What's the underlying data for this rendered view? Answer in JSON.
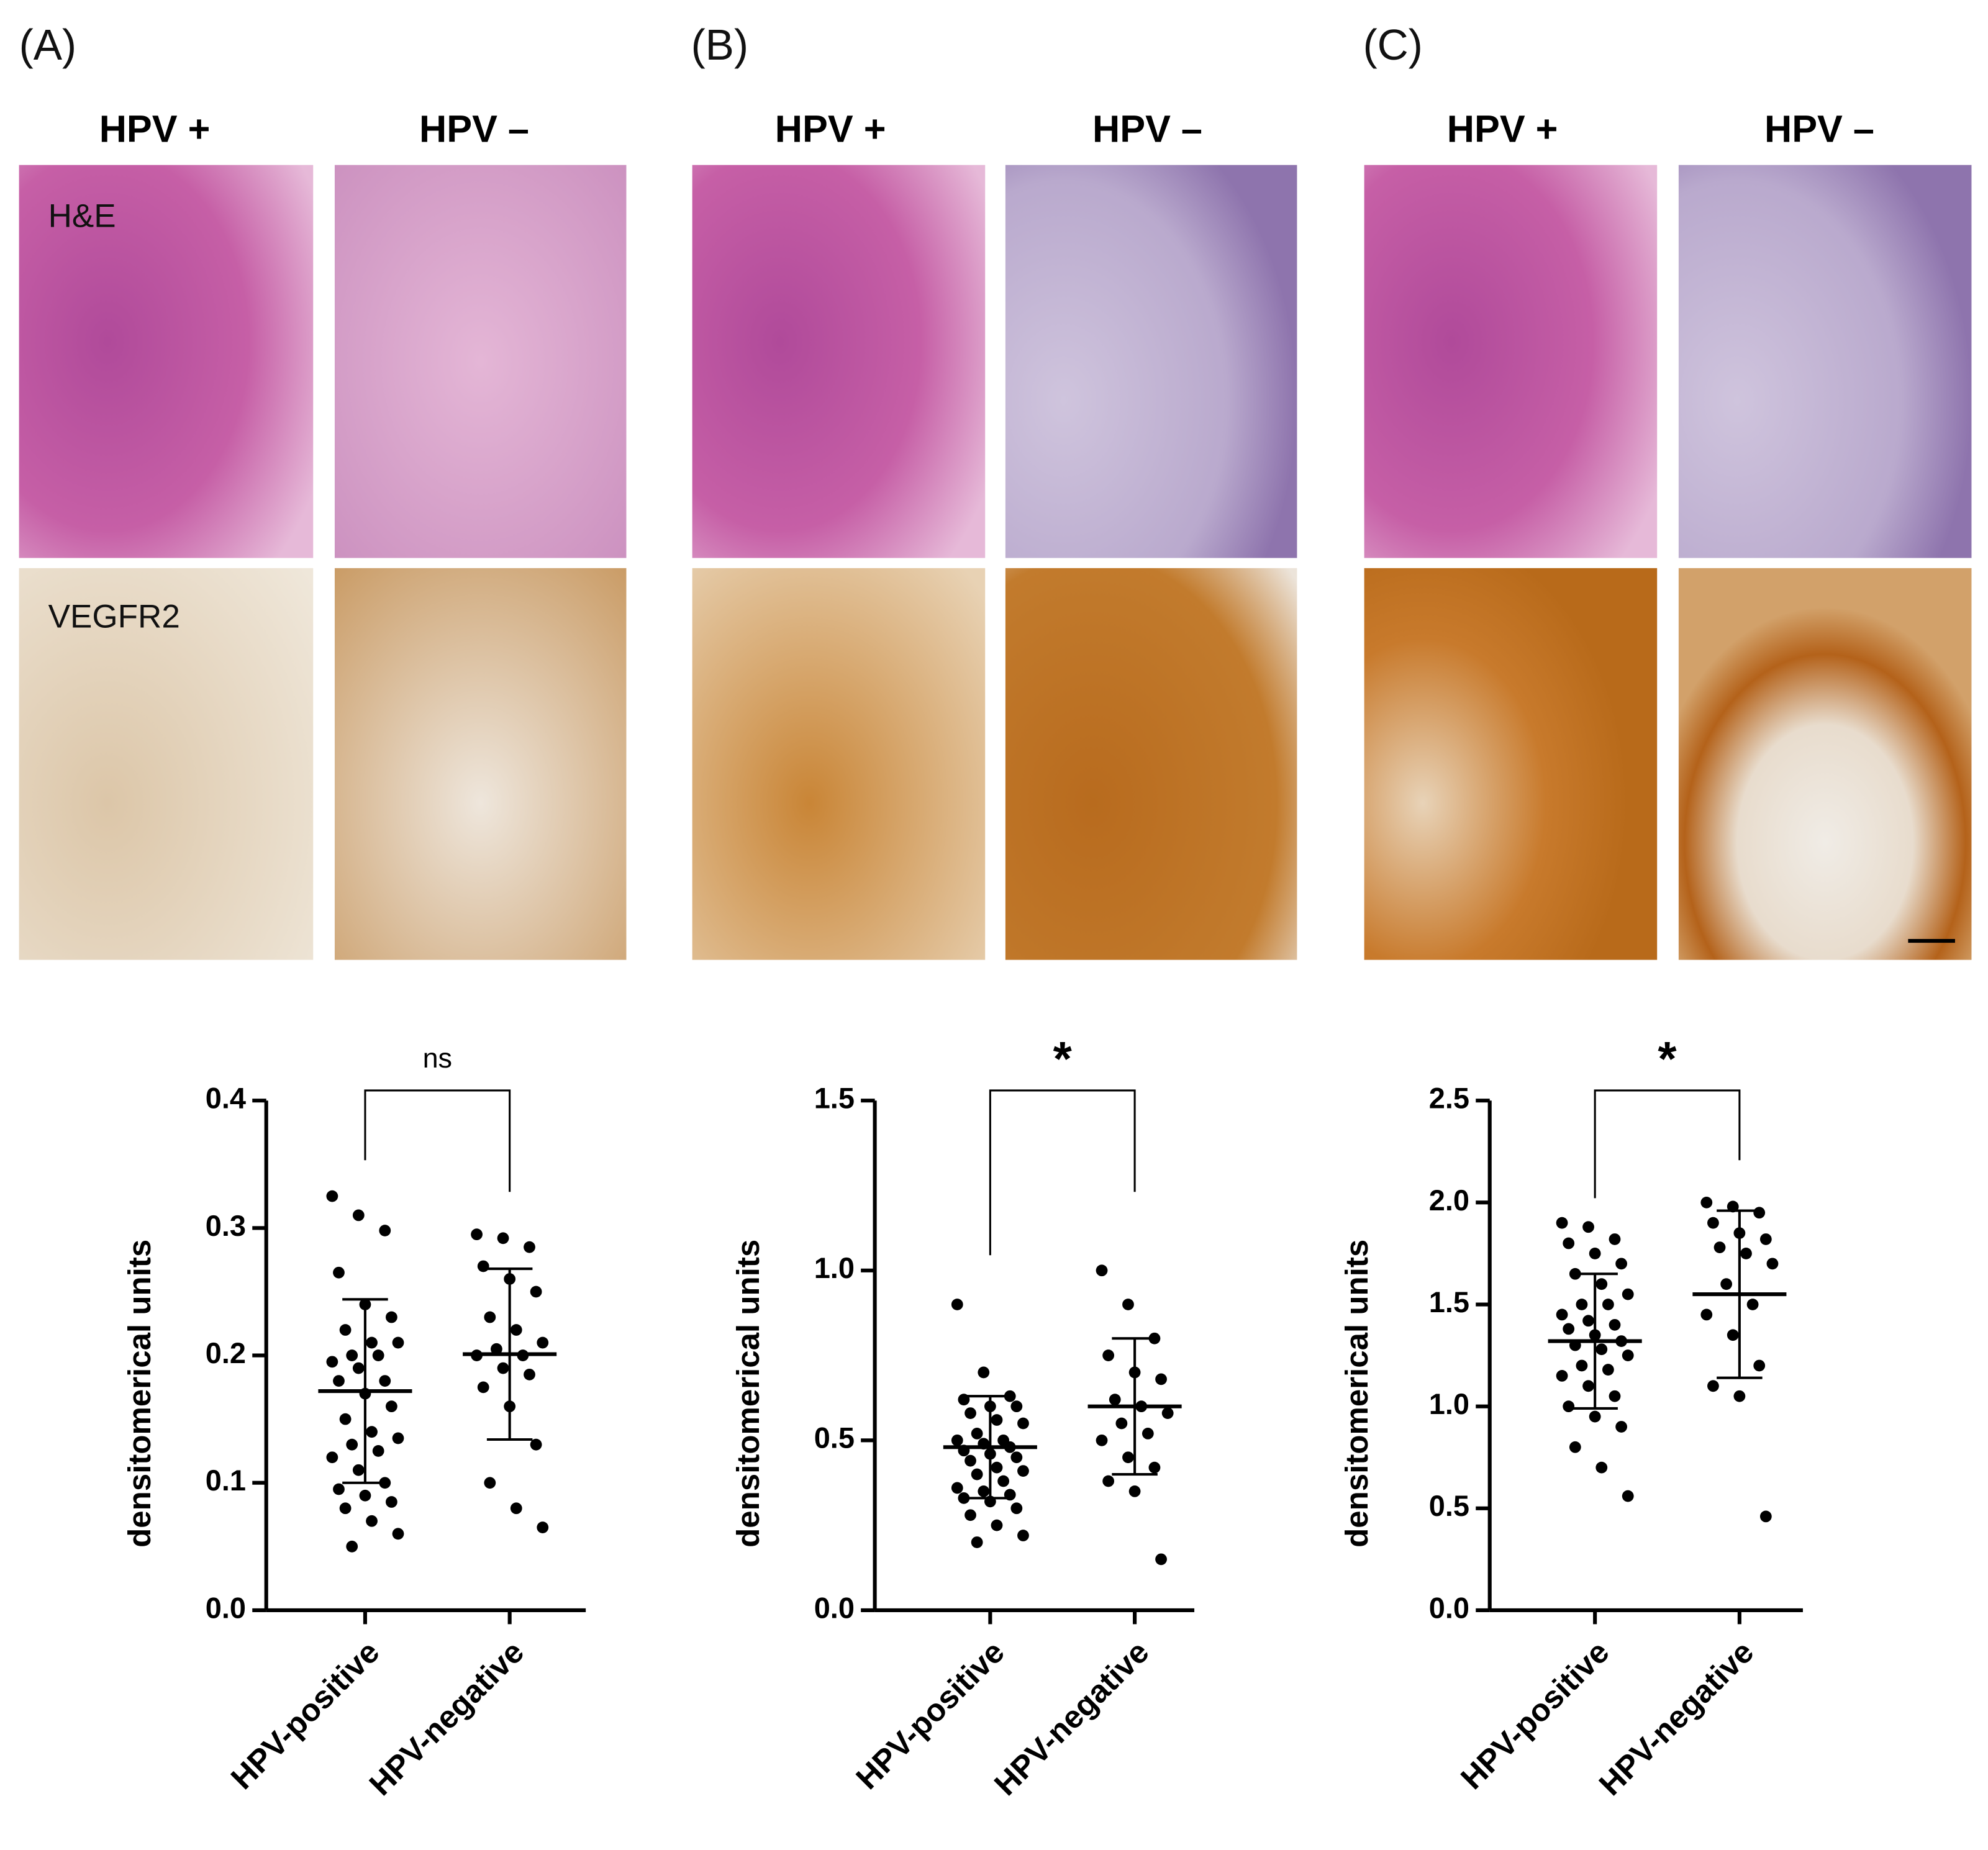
{
  "figure": {
    "panels": [
      {
        "label": "(A)",
        "columns": [
          "HPV +",
          "HPV –"
        ]
      },
      {
        "label": "(B)",
        "columns": [
          "HPV +",
          "HPV –"
        ]
      },
      {
        "label": "(C)",
        "columns": [
          "HPV +",
          "HPV –"
        ]
      }
    ],
    "stains": [
      "H&E",
      "VEGFR2"
    ]
  },
  "chart_data": [
    {
      "type": "dot",
      "ylabel": "densitomerical units",
      "annotation": "ns",
      "categories": [
        "HPV-positive",
        "HPV-negative"
      ],
      "groups": [
        {
          "values": [
            0.325,
            0.31,
            0.298,
            0.265,
            0.24,
            0.23,
            0.22,
            0.21,
            0.21,
            0.2,
            0.2,
            0.195,
            0.19,
            0.18,
            0.18,
            0.17,
            0.16,
            0.15,
            0.14,
            0.135,
            0.13,
            0.125,
            0.12,
            0.11,
            0.1,
            0.095,
            0.09,
            0.085,
            0.08,
            0.07,
            0.06,
            0.05
          ],
          "mean": 0.172,
          "sd": 0.072
        },
        {
          "values": [
            0.295,
            0.292,
            0.285,
            0.27,
            0.26,
            0.25,
            0.23,
            0.22,
            0.21,
            0.205,
            0.2,
            0.2,
            0.19,
            0.185,
            0.175,
            0.16,
            0.13,
            0.1,
            0.08,
            0.065
          ],
          "mean": 0.201,
          "sd": 0.067
        }
      ],
      "color": "#000000",
      "ylim": [
        0,
        0.4
      ],
      "yticks": [
        {
          "value": 0,
          "label": "0.0"
        },
        0.1,
        0.2,
        0.3,
        0.4
      ]
    },
    {
      "type": "dot",
      "ylabel": "densitomerical units",
      "annotation": "*",
      "categories": [
        "HPV-positive",
        "HPV-negative"
      ],
      "groups": [
        {
          "values": [
            0.9,
            0.7,
            0.63,
            0.62,
            0.6,
            0.6,
            0.58,
            0.56,
            0.55,
            0.52,
            0.5,
            0.5,
            0.49,
            0.48,
            0.47,
            0.46,
            0.45,
            0.44,
            0.42,
            0.41,
            0.4,
            0.38,
            0.36,
            0.35,
            0.34,
            0.33,
            0.32,
            0.3,
            0.28,
            0.25,
            0.22,
            0.2
          ],
          "mean": 0.48,
          "sd": 0.15
        },
        {
          "values": [
            1.0,
            0.9,
            0.8,
            0.75,
            0.7,
            0.68,
            0.62,
            0.6,
            0.58,
            0.55,
            0.52,
            0.5,
            0.45,
            0.42,
            0.38,
            0.35,
            0.15
          ],
          "mean": 0.6,
          "sd": 0.2
        }
      ],
      "color": "#000000",
      "ylim": [
        0,
        1.5
      ],
      "yticks": [
        {
          "value": 0,
          "label": "0.0"
        },
        0.5,
        {
          "value": 1,
          "label": "1.0"
        },
        1.5
      ]
    },
    {
      "type": "dot",
      "ylabel": "densitomerical units",
      "annotation": "*",
      "categories": [
        "HPV-positive",
        "HPV-negative"
      ],
      "groups": [
        {
          "values": [
            1.9,
            1.88,
            1.82,
            1.8,
            1.75,
            1.7,
            1.65,
            1.6,
            1.55,
            1.5,
            1.5,
            1.45,
            1.42,
            1.4,
            1.38,
            1.35,
            1.32,
            1.3,
            1.28,
            1.25,
            1.2,
            1.18,
            1.15,
            1.1,
            1.05,
            1.0,
            0.95,
            0.9,
            0.8,
            0.7,
            0.56
          ],
          "mean": 1.32,
          "sd": 0.33
        },
        {
          "values": [
            2.0,
            1.98,
            1.95,
            1.9,
            1.85,
            1.82,
            1.78,
            1.75,
            1.7,
            1.6,
            1.5,
            1.45,
            1.35,
            1.2,
            1.1,
            1.05,
            0.46
          ],
          "mean": 1.55,
          "sd": 0.41
        }
      ],
      "color": "#000000",
      "ylim": [
        0,
        2.5
      ],
      "yticks": [
        {
          "value": 0,
          "label": "0.0"
        },
        0.5,
        {
          "value": 1,
          "label": "1.0"
        },
        1.5,
        {
          "value": 2,
          "label": "2.0"
        },
        2.5
      ]
    }
  ]
}
